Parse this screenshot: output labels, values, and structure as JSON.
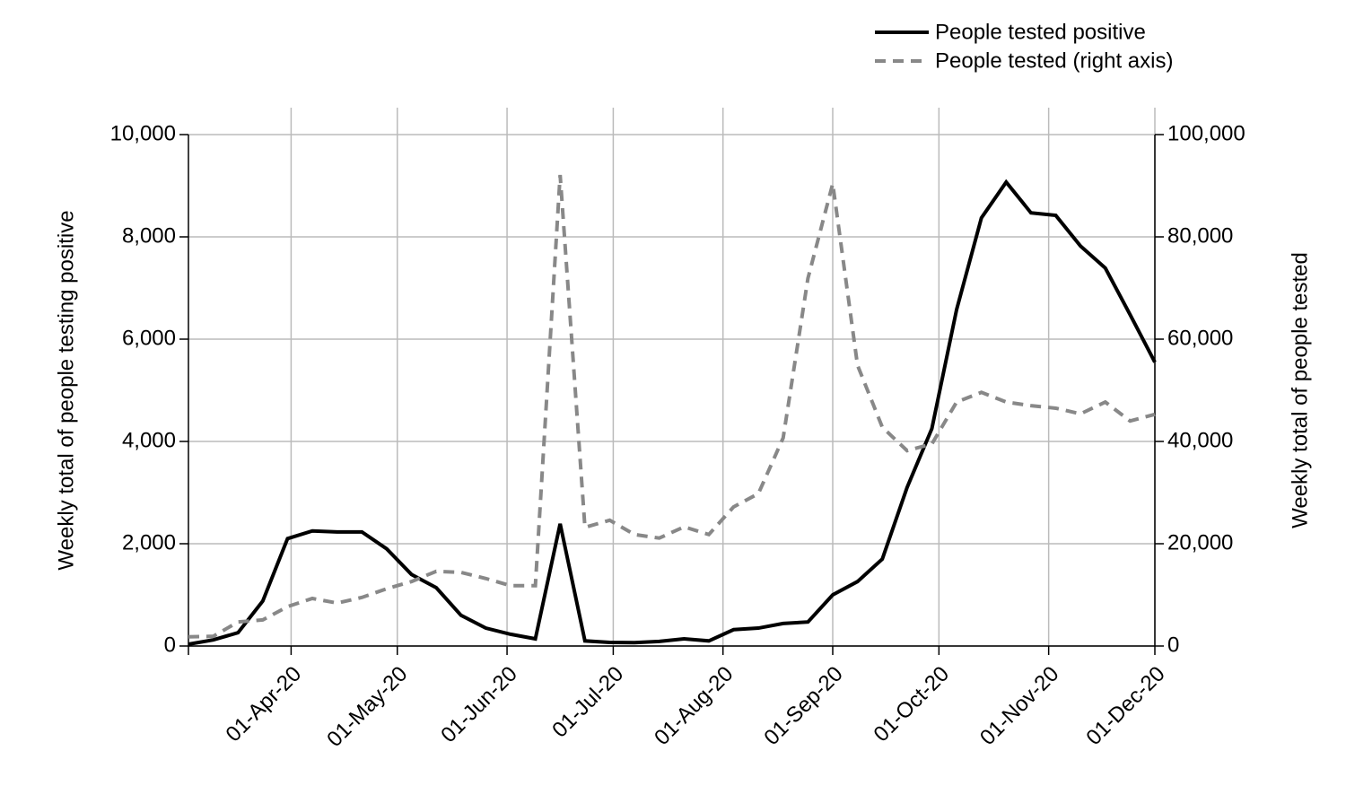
{
  "chart_data": {
    "type": "line",
    "x": [
      "2020-03-03",
      "2020-03-10",
      "2020-03-17",
      "2020-03-24",
      "2020-03-31",
      "2020-04-07",
      "2020-04-14",
      "2020-04-21",
      "2020-04-28",
      "2020-05-05",
      "2020-05-12",
      "2020-05-19",
      "2020-05-26",
      "2020-06-02",
      "2020-06-09",
      "2020-06-16",
      "2020-06-23",
      "2020-06-30",
      "2020-07-07",
      "2020-07-14",
      "2020-07-21",
      "2020-07-28",
      "2020-08-04",
      "2020-08-11",
      "2020-08-18",
      "2020-08-25",
      "2020-09-01",
      "2020-09-08",
      "2020-09-15",
      "2020-09-22",
      "2020-09-29",
      "2020-10-06",
      "2020-10-13",
      "2020-10-20",
      "2020-10-27",
      "2020-11-03",
      "2020-11-10",
      "2020-11-17",
      "2020-11-24",
      "2020-12-01"
    ],
    "series": [
      {
        "name": "People tested positive",
        "color": "#000000",
        "dash": false,
        "axis": "y",
        "values": [
          35,
          120,
          260,
          880,
          2100,
          2250,
          2230,
          2230,
          1900,
          1400,
          1140,
          600,
          350,
          230,
          140,
          2390,
          100,
          70,
          65,
          90,
          140,
          100,
          320,
          350,
          440,
          470,
          1000,
          1260,
          1700,
          3100,
          4250,
          6580,
          8370,
          9070,
          8470,
          8420,
          7820,
          7390,
          6480,
          5550
        ]
      },
      {
        "name": "People tested (right axis)",
        "color": "#888888",
        "dash": true,
        "axis": "y2",
        "values": [
          1800,
          1900,
          4700,
          5100,
          7700,
          9300,
          8400,
          9500,
          11200,
          12600,
          14600,
          14400,
          13200,
          11800,
          11800,
          92100,
          23200,
          24600,
          21800,
          21100,
          23300,
          21800,
          27200,
          29800,
          40700,
          71900,
          90400,
          54900,
          42800,
          38200,
          39500,
          47700,
          49600,
          47700,
          47000,
          46500,
          45400,
          47700,
          44000,
          45300
        ]
      }
    ],
    "xlim": [
      "2020-03-03",
      "2020-12-01"
    ],
    "xticks": [
      {
        "value": "2020-04-01",
        "label": "01-Apr-20"
      },
      {
        "value": "2020-05-01",
        "label": "01-May-20"
      },
      {
        "value": "2020-06-01",
        "label": "01-Jun-20"
      },
      {
        "value": "2020-07-01",
        "label": "01-Jul-20"
      },
      {
        "value": "2020-08-01",
        "label": "01-Aug-20"
      },
      {
        "value": "2020-09-01",
        "label": "01-Sep-20"
      },
      {
        "value": "2020-10-01",
        "label": "01-Oct-20"
      },
      {
        "value": "2020-11-01",
        "label": "01-Nov-20"
      },
      {
        "value": "2020-12-01",
        "label": "01-Dec-20"
      }
    ],
    "ylim": [
      0,
      10000
    ],
    "yticks": [
      0,
      {
        "value": 2000,
        "label": "2,000"
      },
      {
        "value": 4000,
        "label": "4,000"
      },
      {
        "value": 6000,
        "label": "6,000"
      },
      {
        "value": 8000,
        "label": "8,000"
      },
      {
        "value": 10000,
        "label": "10,000"
      }
    ],
    "y2lim": [
      0,
      100000
    ],
    "y2ticks": [
      0,
      {
        "value": 20000,
        "label": "20,000"
      },
      {
        "value": 40000,
        "label": "40,000"
      },
      {
        "value": 60000,
        "label": "60,000"
      },
      {
        "value": 80000,
        "label": "80,000"
      },
      {
        "value": 100000,
        "label": "100,000"
      }
    ],
    "ylabel": "Weekly total of people testing positive",
    "y2label": "Weekly total of people tested",
    "grid": true,
    "legend": "top-right"
  }
}
